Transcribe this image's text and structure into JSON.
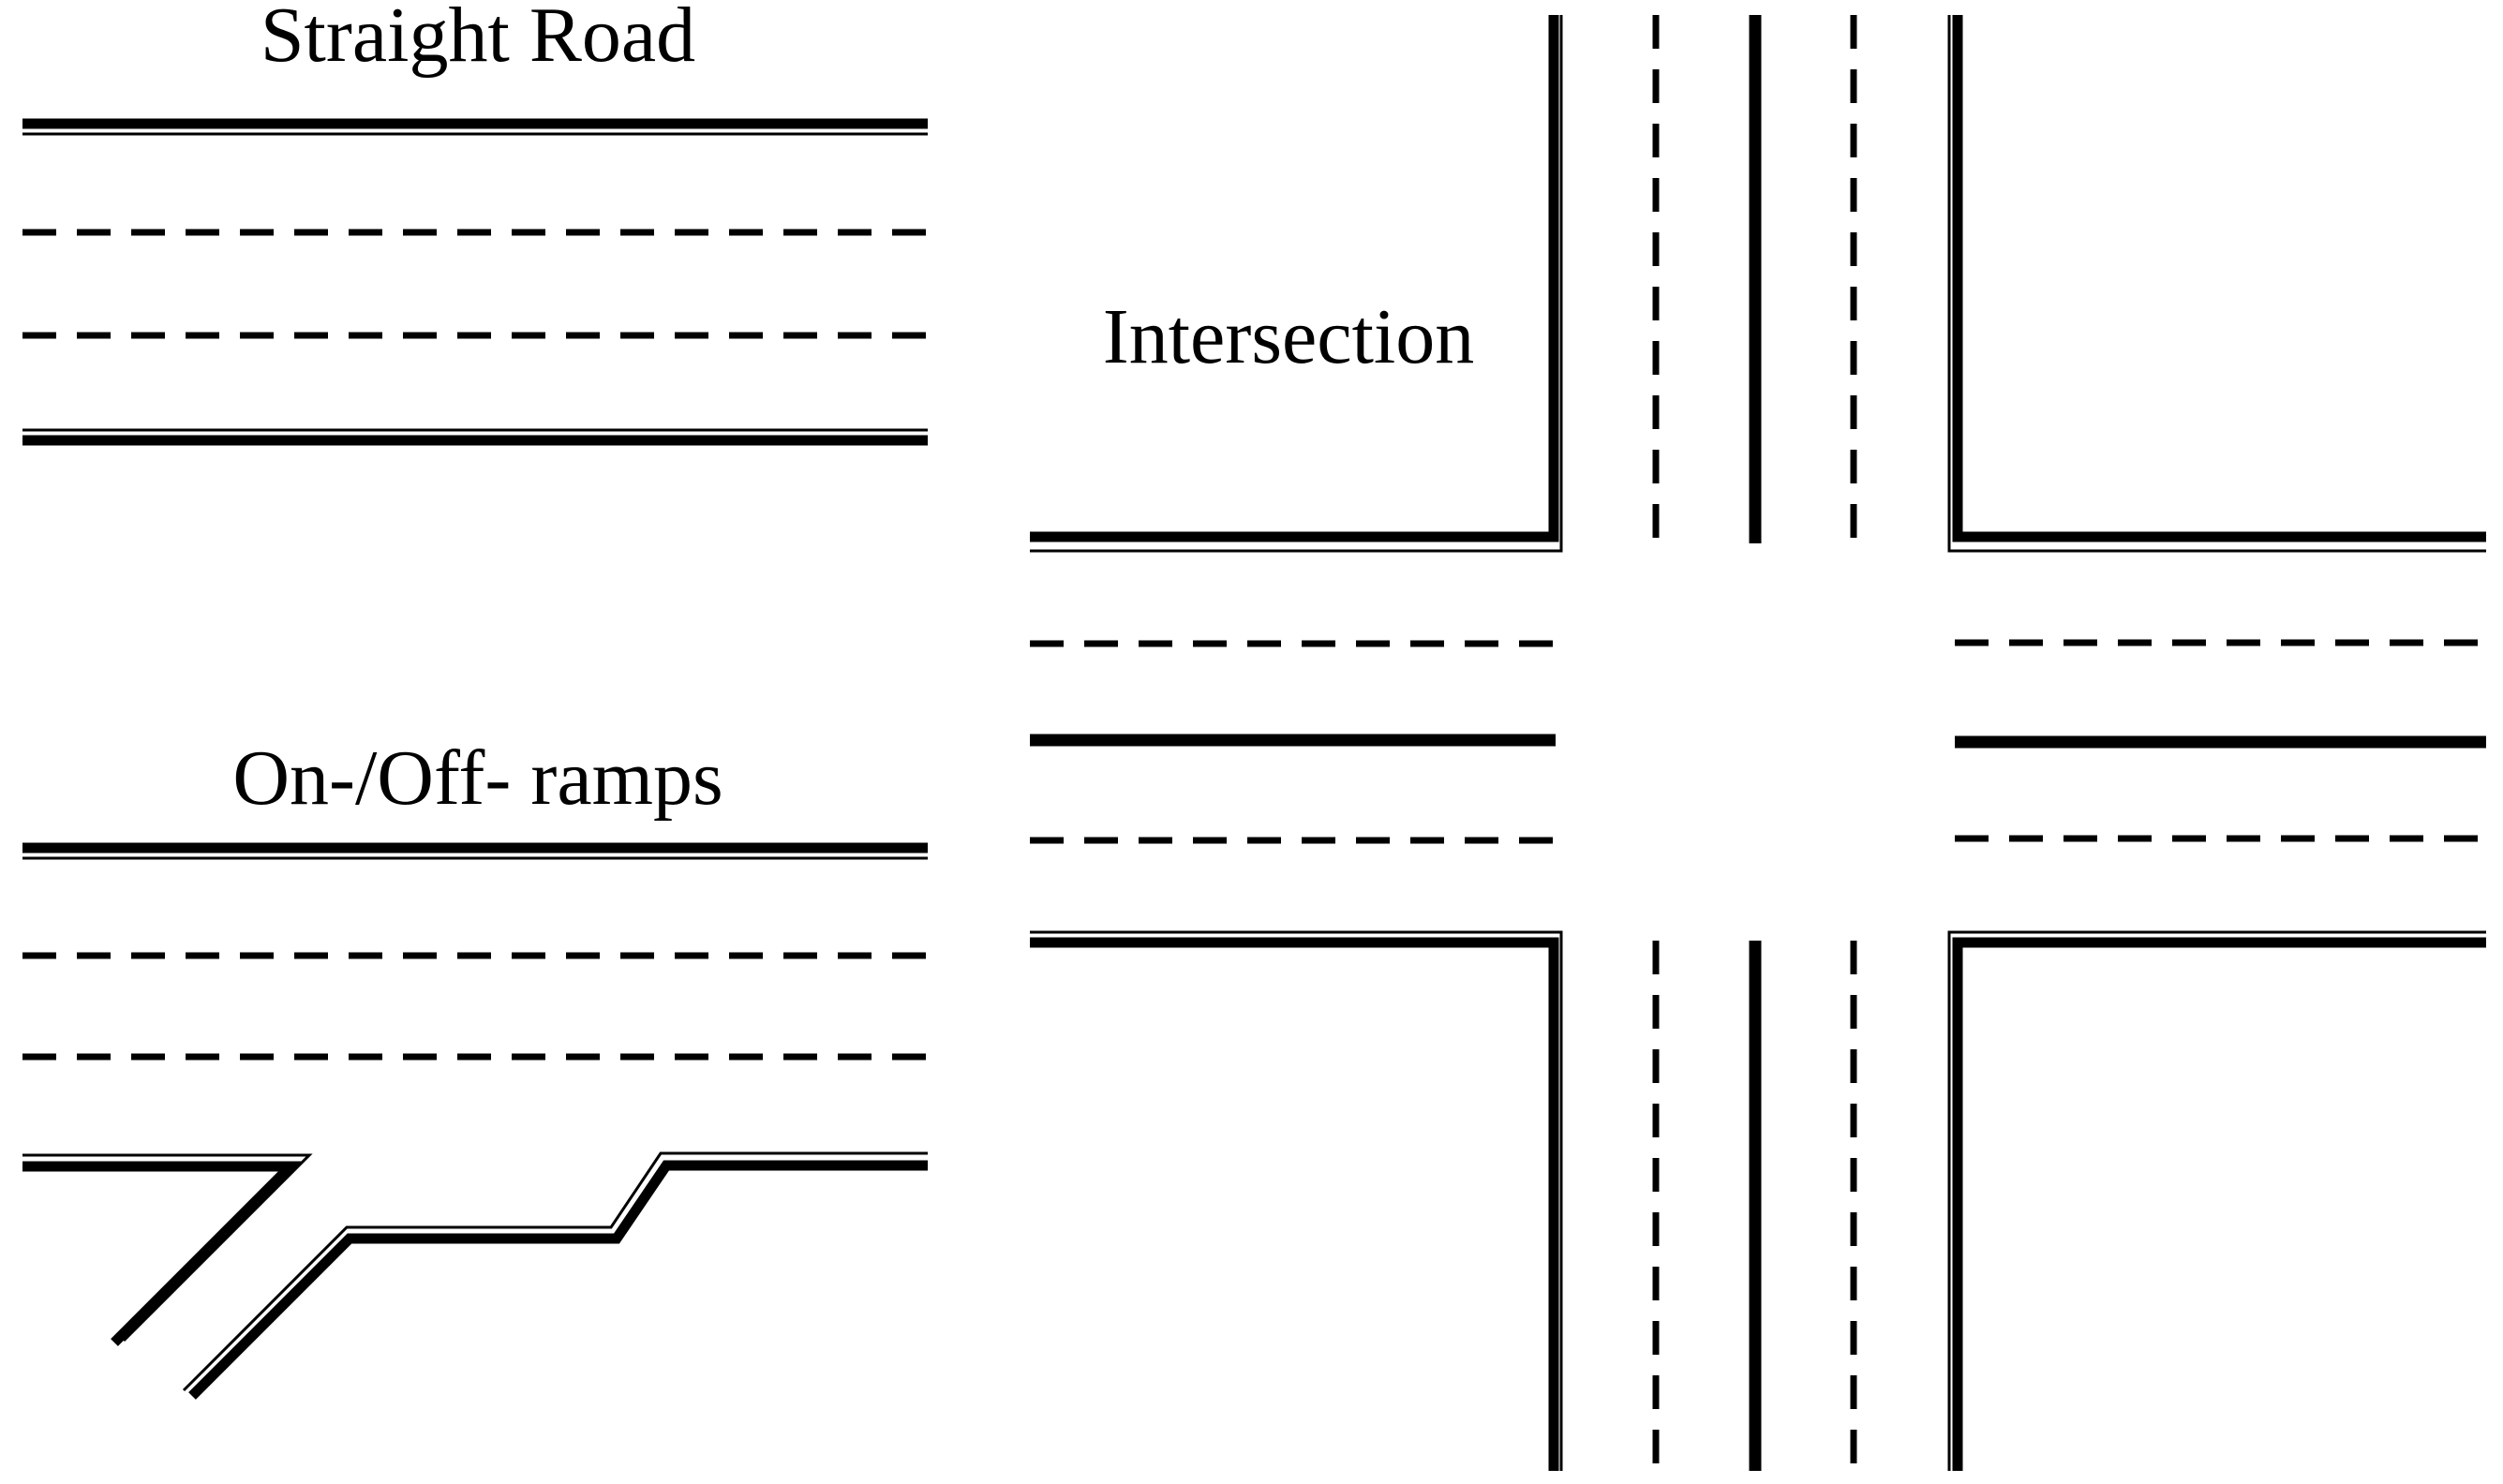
{
  "labels": {
    "straight_road": "Straight Road",
    "intersection": "Intersection",
    "ramps": "On-/Off- ramps"
  },
  "colors": {
    "background": "#ffffff",
    "line": "#000000"
  }
}
